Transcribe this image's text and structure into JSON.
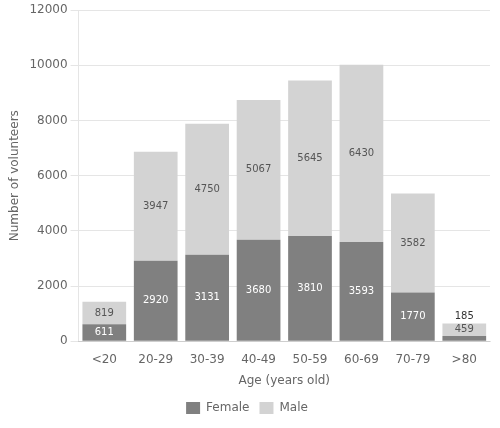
{
  "chart_data": {
    "type": "bar",
    "stacked": true,
    "categories": [
      "<20",
      "20-29",
      "30-39",
      "40-49",
      "50-59",
      "60-69",
      "70-79",
      ">80"
    ],
    "series": [
      {
        "name": "Female",
        "color": "#808080",
        "values": [
          611,
          2920,
          3131,
          3680,
          3810,
          3593,
          1770,
          185
        ]
      },
      {
        "name": "Male",
        "color": "#d3d3d3",
        "values": [
          819,
          3947,
          4750,
          5067,
          5645,
          6430,
          3582,
          459
        ]
      }
    ],
    "xlabel": "Age (years old)",
    "ylabel": "Number of volunteers",
    "ylim": [
      0,
      12000
    ],
    "yticks": [
      0,
      2000,
      4000,
      6000,
      8000,
      10000,
      12000
    ],
    "grid": true,
    "legend": "bottom",
    "data_labels": true
  }
}
